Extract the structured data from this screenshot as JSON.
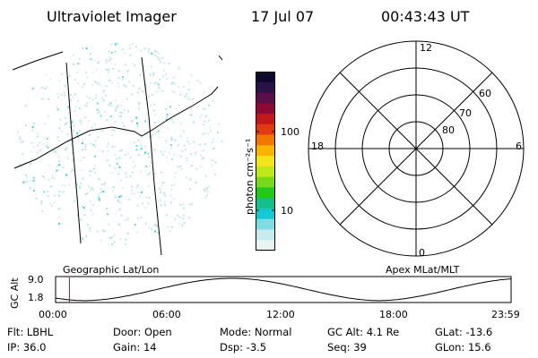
{
  "header": {
    "title": "Ultraviolet Imager",
    "date": "17 Jul 07",
    "time": "00:43:43 UT"
  },
  "colorbar": {
    "unit_label": "photon cm⁻²s⁻¹",
    "ticks": [
      "100",
      "10"
    ],
    "colors": [
      "#0b0b2e",
      "#2a1248",
      "#5a0f48",
      "#8c0a38",
      "#c21a1a",
      "#e23b14",
      "#f07800",
      "#f7b400",
      "#f4e41c",
      "#bfe81a",
      "#78d81c",
      "#22c81c",
      "#14c08a",
      "#18c7d4",
      "#7fdbe4",
      "#c7ecef",
      "#e6f4f6"
    ]
  },
  "polar": {
    "mlt_labels": {
      "top": "12",
      "right": "6",
      "bottom": "0",
      "left": "18"
    },
    "lat_labels": [
      "80",
      "70",
      "60"
    ]
  },
  "projections": {
    "left": "Geographic Lat/Lon",
    "right": "Apex MLat/MLT"
  },
  "alt_plot": {
    "ylabel": "GC Alt",
    "y_ticks": [
      "9.0",
      "1.8"
    ],
    "x_ticks": [
      "00:00",
      "06:00",
      "12:00",
      "18:00",
      "23:59"
    ],
    "marker_hours": 0.729
  },
  "info": {
    "flt": "Flt: LBHL",
    "ip": "IP: 36.0",
    "door": "Door: Open",
    "gain": "Gain: 14",
    "mode": "Mode: Normal",
    "dsp": "Dsp:    -3.5",
    "gc_alt": "GC Alt: 4.1 Re",
    "seq": "Seq: 39",
    "glat": "GLat:  -13.6",
    "glon": "GLon:   15.6"
  },
  "colors": {
    "marker": "#d00000",
    "scatter": [
      "#d9ecec",
      "#c8e6e8",
      "#b8e2e6",
      "#6fd6e4",
      "#3cc9dc"
    ]
  }
}
